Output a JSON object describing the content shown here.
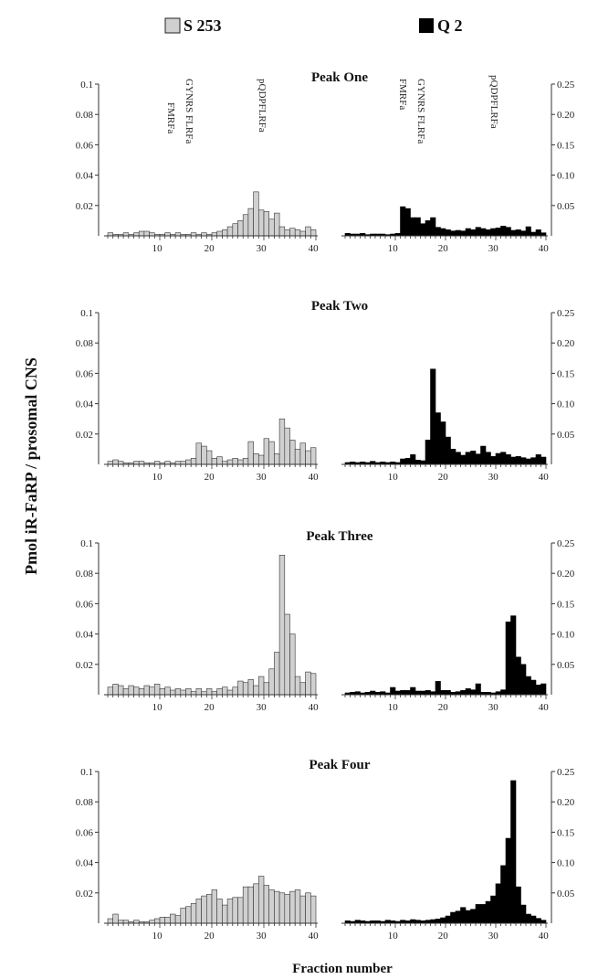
{
  "legend": {
    "s_label": "S 253",
    "q_label": "Q 2",
    "s_color": "#d0d0d0",
    "q_color": "#000000",
    "placement": "top"
  },
  "ylabel": "Pmol iR-FaRP / prosomal CNS",
  "xlabel": "Fraction number",
  "left_ticks": [
    "0.1",
    "0.08",
    "0.06",
    "0.04",
    "0.02"
  ],
  "right_ticks": [
    "0.25",
    "0.20",
    "0.15",
    "0.10",
    "0.05"
  ],
  "x_ticks": [
    "10",
    "20",
    "30",
    "40"
  ],
  "annotations": [
    "GYNRS FLRFa",
    "FMRFa",
    "pQDPFLRFa"
  ],
  "chart_data": {
    "type": "bar",
    "x": [
      1,
      2,
      3,
      4,
      5,
      6,
      7,
      8,
      9,
      10,
      11,
      12,
      13,
      14,
      15,
      16,
      17,
      18,
      19,
      20,
      21,
      22,
      23,
      24,
      25,
      26,
      27,
      28,
      29,
      30,
      31,
      32,
      33,
      34,
      35,
      36,
      37,
      38,
      39,
      40
    ],
    "left_ylim": [
      0,
      0.1
    ],
    "right_ylim": [
      0,
      0.25
    ],
    "xlim": [
      0,
      40
    ],
    "grid": false,
    "panels": [
      {
        "title": "Peak One",
        "series": [
          {
            "name": "S 253",
            "axis": "left",
            "values": [
              0.002,
              0.001,
              0.001,
              0.002,
              0.001,
              0.002,
              0.003,
              0.003,
              0.002,
              0.001,
              0.001,
              0.002,
              0.001,
              0.002,
              0.001,
              0.001,
              0.002,
              0.001,
              0.002,
              0.001,
              0.002,
              0.003,
              0.004,
              0.006,
              0.008,
              0.01,
              0.014,
              0.018,
              0.029,
              0.017,
              0.016,
              0.011,
              0.015,
              0.006,
              0.004,
              0.005,
              0.004,
              0.003,
              0.006,
              0.004
            ]
          },
          {
            "name": "Q 2",
            "axis": "right",
            "values": [
              0.004,
              0.003,
              0.003,
              0.004,
              0.002,
              0.003,
              0.003,
              0.003,
              0.002,
              0.003,
              0.004,
              0.048,
              0.045,
              0.03,
              0.03,
              0.02,
              0.025,
              0.03,
              0.014,
              0.012,
              0.01,
              0.008,
              0.009,
              0.008,
              0.012,
              0.01,
              0.014,
              0.012,
              0.01,
              0.012,
              0.013,
              0.016,
              0.014,
              0.009,
              0.01,
              0.008,
              0.015,
              0.006,
              0.01,
              0.005
            ]
          }
        ]
      },
      {
        "title": "Peak Two",
        "series": [
          {
            "name": "S 253",
            "axis": "left",
            "values": [
              0.002,
              0.003,
              0.002,
              0.001,
              0.001,
              0.002,
              0.002,
              0.001,
              0.001,
              0.002,
              0.001,
              0.002,
              0.001,
              0.002,
              0.002,
              0.003,
              0.004,
              0.014,
              0.012,
              0.009,
              0.004,
              0.005,
              0.002,
              0.003,
              0.004,
              0.003,
              0.004,
              0.015,
              0.007,
              0.006,
              0.017,
              0.015,
              0.007,
              0.03,
              0.024,
              0.016,
              0.01,
              0.014,
              0.009,
              0.011
            ]
          },
          {
            "name": "Q 2",
            "axis": "right",
            "values": [
              0.003,
              0.004,
              0.003,
              0.004,
              0.003,
              0.005,
              0.003,
              0.004,
              0.003,
              0.004,
              0.003,
              0.009,
              0.01,
              0.016,
              0.007,
              0.006,
              0.04,
              0.157,
              0.085,
              0.07,
              0.045,
              0.025,
              0.02,
              0.015,
              0.02,
              0.022,
              0.017,
              0.03,
              0.02,
              0.013,
              0.018,
              0.02,
              0.016,
              0.012,
              0.013,
              0.011,
              0.009,
              0.011,
              0.016,
              0.012
            ]
          }
        ]
      },
      {
        "title": "Peak Three",
        "series": [
          {
            "name": "S 253",
            "axis": "left",
            "values": [
              0.005,
              0.007,
              0.006,
              0.004,
              0.006,
              0.005,
              0.004,
              0.006,
              0.005,
              0.007,
              0.004,
              0.005,
              0.003,
              0.004,
              0.003,
              0.004,
              0.002,
              0.004,
              0.002,
              0.004,
              0.002,
              0.004,
              0.005,
              0.003,
              0.005,
              0.009,
              0.008,
              0.01,
              0.006,
              0.012,
              0.008,
              0.017,
              0.028,
              0.092,
              0.053,
              0.04,
              0.012,
              0.008,
              0.015,
              0.014
            ]
          },
          {
            "name": "Q 2",
            "axis": "right",
            "values": [
              0.003,
              0.004,
              0.005,
              0.003,
              0.004,
              0.006,
              0.004,
              0.005,
              0.003,
              0.012,
              0.006,
              0.007,
              0.007,
              0.012,
              0.006,
              0.006,
              0.007,
              0.005,
              0.022,
              0.007,
              0.007,
              0.004,
              0.005,
              0.007,
              0.01,
              0.008,
              0.018,
              0.004,
              0.004,
              0.003,
              0.005,
              0.008,
              0.12,
              0.13,
              0.062,
              0.05,
              0.03,
              0.024,
              0.016,
              0.018
            ]
          }
        ]
      },
      {
        "title": "Peak Four",
        "series": [
          {
            "name": "S 253",
            "axis": "left",
            "values": [
              0.003,
              0.006,
              0.002,
              0.002,
              0.001,
              0.002,
              0.001,
              0.001,
              0.002,
              0.003,
              0.004,
              0.004,
              0.006,
              0.005,
              0.01,
              0.011,
              0.013,
              0.016,
              0.018,
              0.019,
              0.022,
              0.016,
              0.012,
              0.016,
              0.017,
              0.017,
              0.024,
              0.024,
              0.026,
              0.031,
              0.025,
              0.022,
              0.021,
              0.02,
              0.019,
              0.021,
              0.022,
              0.018,
              0.02,
              0.018
            ]
          },
          {
            "name": "Q 2",
            "axis": "right",
            "values": [
              0.004,
              0.003,
              0.005,
              0.004,
              0.003,
              0.004,
              0.004,
              0.003,
              0.005,
              0.004,
              0.003,
              0.005,
              0.004,
              0.006,
              0.005,
              0.004,
              0.005,
              0.006,
              0.007,
              0.009,
              0.012,
              0.018,
              0.02,
              0.026,
              0.021,
              0.023,
              0.031,
              0.031,
              0.036,
              0.045,
              0.065,
              0.095,
              0.14,
              0.235,
              0.06,
              0.03,
              0.015,
              0.012,
              0.008,
              0.005
            ]
          }
        ]
      }
    ]
  }
}
